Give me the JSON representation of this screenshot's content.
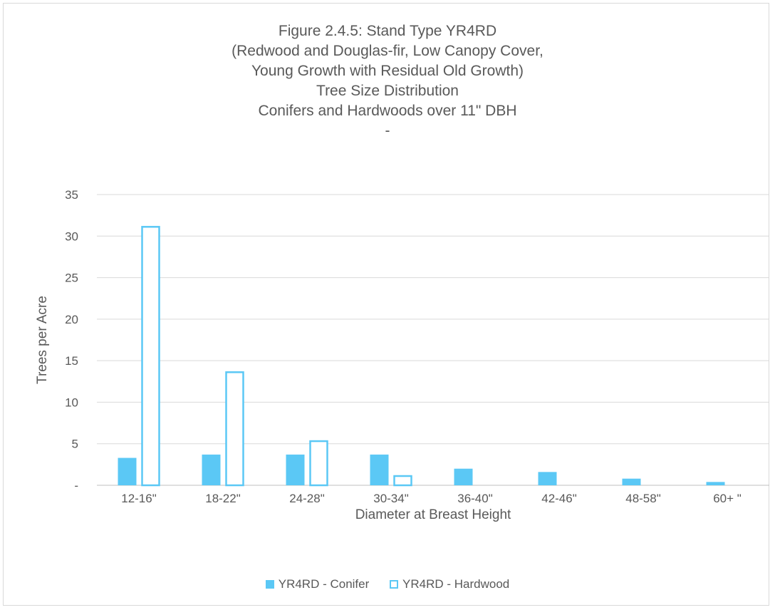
{
  "chart_data": {
    "type": "bar",
    "title_lines": [
      "Figure 2.4.5: Stand Type YR4RD",
      "(Redwood and Douglas-fir, Low Canopy Cover,",
      "Young Growth with Residual Old Growth)",
      "Tree Size Distribution",
      "Conifers and Hardwoods over 11\" DBH",
      "-"
    ],
    "xlabel": "Diameter at Breast Height",
    "ylabel": "Trees per Acre",
    "categories": [
      "12-16\"",
      "18-22\"",
      "24-28\"",
      "30-34\"",
      "36-40\"",
      "42-46\"",
      "48-58\"",
      "60+ \""
    ],
    "ylim": [
      0,
      35
    ],
    "yticks": [
      {
        "value": 0,
        "label": "-"
      },
      {
        "value": 5,
        "label": "5"
      },
      {
        "value": 10,
        "label": "10"
      },
      {
        "value": 15,
        "label": "15"
      },
      {
        "value": 20,
        "label": "20"
      },
      {
        "value": 25,
        "label": "25"
      },
      {
        "value": 30,
        "label": "30"
      },
      {
        "value": 35,
        "label": "35"
      }
    ],
    "grid": true,
    "legend_position": "bottom",
    "series": [
      {
        "name": "YR4RD - Conifer",
        "style": "filled",
        "color": "#5bc8f5",
        "values": [
          3.3,
          3.7,
          3.7,
          3.7,
          2.0,
          1.6,
          0.8,
          0.4
        ]
      },
      {
        "name": "YR4RD - Hardwood",
        "style": "outline",
        "color": "#5bc8f5",
        "values": [
          31.2,
          13.7,
          5.4,
          1.2,
          0,
          0,
          0,
          0
        ]
      }
    ]
  }
}
